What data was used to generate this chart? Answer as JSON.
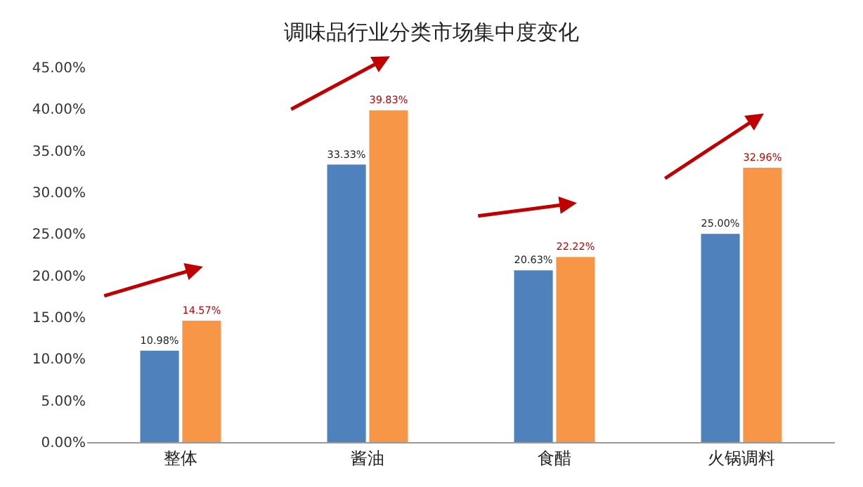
{
  "chart_data": {
    "type": "bar",
    "title": "调味品行业分类市场集中度变化",
    "categories": [
      "整体",
      "酱油",
      "食醋",
      "火锅调料"
    ],
    "series": [
      {
        "color": "#4f81bd",
        "values": [
          10.98,
          33.33,
          20.63,
          25.0
        ],
        "value_labels": [
          "10.98%",
          "33.33%",
          "20.63%",
          "25.00%"
        ]
      },
      {
        "color": "#f79646",
        "values": [
          14.57,
          39.83,
          22.22,
          32.96
        ],
        "value_labels": [
          "14.57%",
          "39.83%",
          "22.22%",
          "32.96%"
        ]
      }
    ],
    "ylim": [
      0,
      45
    ],
    "yticks": [
      {
        "value": 0,
        "label": "0.00%"
      },
      {
        "value": 5,
        "label": "5.00%"
      },
      {
        "value": 10,
        "label": "10.00%"
      },
      {
        "value": 15,
        "label": "15.00%"
      },
      {
        "value": 20,
        "label": "20.00%"
      },
      {
        "value": 25,
        "label": "25.00%"
      },
      {
        "value": 30,
        "label": "30.00%"
      },
      {
        "value": 35,
        "label": "35.00%"
      },
      {
        "value": 40,
        "label": "40.00%"
      },
      {
        "value": 45,
        "label": "45.00%"
      }
    ],
    "grid": false
  }
}
